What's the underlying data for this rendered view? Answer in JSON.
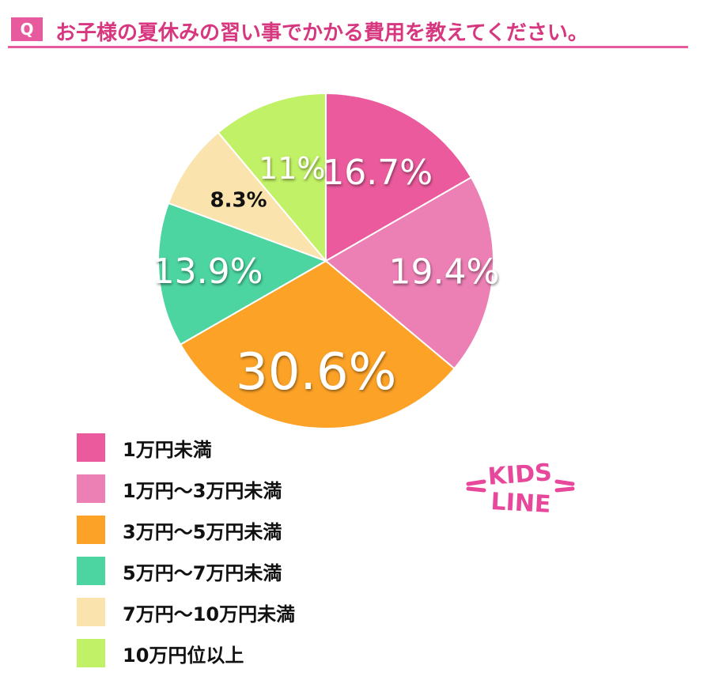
{
  "header": {
    "badge": "Q",
    "title": "お子様の夏休みの習い事でかかる費用を教えてください。"
  },
  "logo": {
    "text_line1": "KIDS",
    "text_line2": "LINE"
  },
  "chart_data": {
    "type": "pie",
    "title": "お子様の夏休みの習い事でかかる費用を教えてください。",
    "slices": [
      {
        "label": "1万円未満",
        "value": 16.7,
        "display": "16.7%",
        "color": "#ea5a9c"
      },
      {
        "label": "1万円〜3万円未満",
        "value": 19.4,
        "display": "19.4%",
        "color": "#ec80b4"
      },
      {
        "label": "3万円〜5万円未満",
        "value": 30.6,
        "display": "30.6%",
        "color": "#fca227"
      },
      {
        "label": "5万円〜7万円未満",
        "value": 13.9,
        "display": "13.9%",
        "color": "#4cd4a1"
      },
      {
        "label": "7万円〜10万円未満",
        "value": 8.3,
        "display": "8.3%",
        "color": "#fae3ad"
      },
      {
        "label": "10万円位以上",
        "value": 11.1,
        "display": "11%",
        "color": "#c1f166"
      }
    ],
    "start_angle": "12 o'clock",
    "direction": "clockwise",
    "legend_position": "bottom-left"
  }
}
